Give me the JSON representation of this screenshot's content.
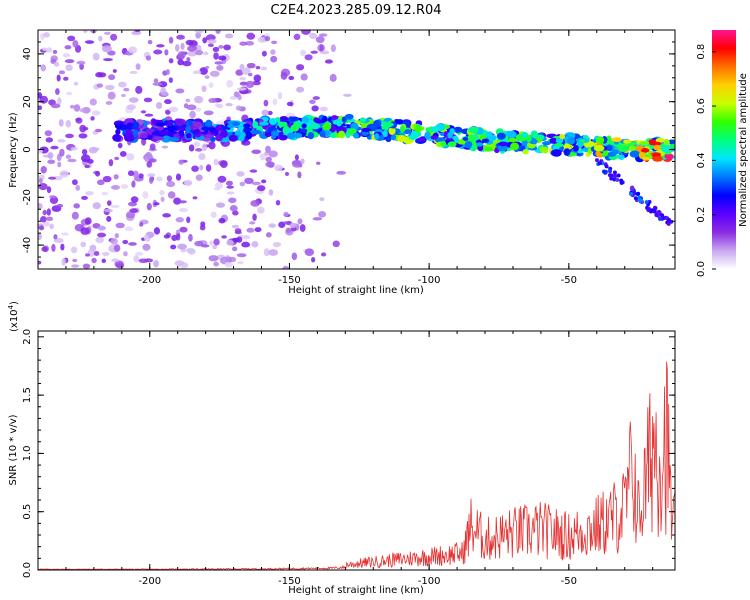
{
  "figure": {
    "title": "C2E4.2023.285.09.12.R04"
  },
  "colors": {
    "snr_line": "#e53030",
    "axes": "#000000",
    "colormap": [
      "#ffffff",
      "#c8a8f0",
      "#8a2be2",
      "#5b00ff",
      "#0000ff",
      "#0078ff",
      "#00e5ff",
      "#00ff80",
      "#32ff00",
      "#c8ff00",
      "#ffd000",
      "#ff7000",
      "#ff0000",
      "#ff1493"
    ]
  },
  "chart_data": [
    {
      "type": "heatmap",
      "title": "C2E4.2023.285.09.12.R04",
      "xlabel": "Height of straight line (km)",
      "ylabel": "Frequency (Hz)",
      "xlim": [
        -240,
        -12
      ],
      "ylim": [
        -50,
        50
      ],
      "xticks": [
        -200,
        -150,
        -100,
        -50
      ],
      "yticks": [
        -40,
        -20,
        0,
        20,
        40
      ],
      "grid": false,
      "ridge": {
        "description_points_x": [
          -210,
          -180,
          -150,
          -130,
          -110,
          -90,
          -70,
          -50,
          -30,
          -15
        ],
        "description_points_y": [
          8,
          8,
          9,
          10,
          8,
          5,
          3,
          2,
          0,
          0
        ],
        "peak_amplitude": [
          0.3,
          0.35,
          0.45,
          0.55,
          0.6,
          0.55,
          0.55,
          0.6,
          0.7,
          0.8
        ]
      },
      "colorbar": {
        "label": "Normalized spectral amplitude",
        "range": [
          0.0,
          0.88
        ],
        "ticks": [
          0.0,
          0.2,
          0.4,
          0.6,
          0.8
        ],
        "tick_labels": [
          "0.0",
          "0.2",
          "0.4",
          "0.6",
          "0.8"
        ]
      }
    },
    {
      "type": "line",
      "xlabel": "Height of straight line (km)",
      "ylabel": "SNR (10 * v/v)",
      "y_multiplier": "(x10",
      "y_multiplier_exp": "4",
      "y_multiplier_close": ")",
      "xlim": [
        -240,
        -12
      ],
      "ylim": [
        0,
        2.05
      ],
      "xticks": [
        -200,
        -150,
        -100,
        -50
      ],
      "yticks": [
        0.0,
        0.5,
        1.0,
        1.5,
        2.0
      ],
      "ytick_labels": [
        "0.0",
        "0.5",
        "1.0",
        "1.5",
        "2.0"
      ],
      "grid": false,
      "series": [
        {
          "x": [
            -240,
            -200,
            -160,
            -135,
            -125,
            -115,
            -105,
            -95,
            -88,
            -85,
            -80,
            -70,
            -60,
            -50,
            -40,
            -35,
            -30,
            -27,
            -25,
            -22,
            -20,
            -17,
            -15,
            -13
          ],
          "y": [
            0.02,
            0.02,
            0.03,
            0.05,
            0.1,
            0.14,
            0.18,
            0.22,
            0.25,
            0.65,
            0.45,
            0.55,
            0.6,
            0.5,
            0.65,
            0.75,
            0.9,
            1.55,
            0.8,
            1.35,
            1.95,
            1.75,
            2.0,
            0.7
          ]
        }
      ]
    }
  ]
}
